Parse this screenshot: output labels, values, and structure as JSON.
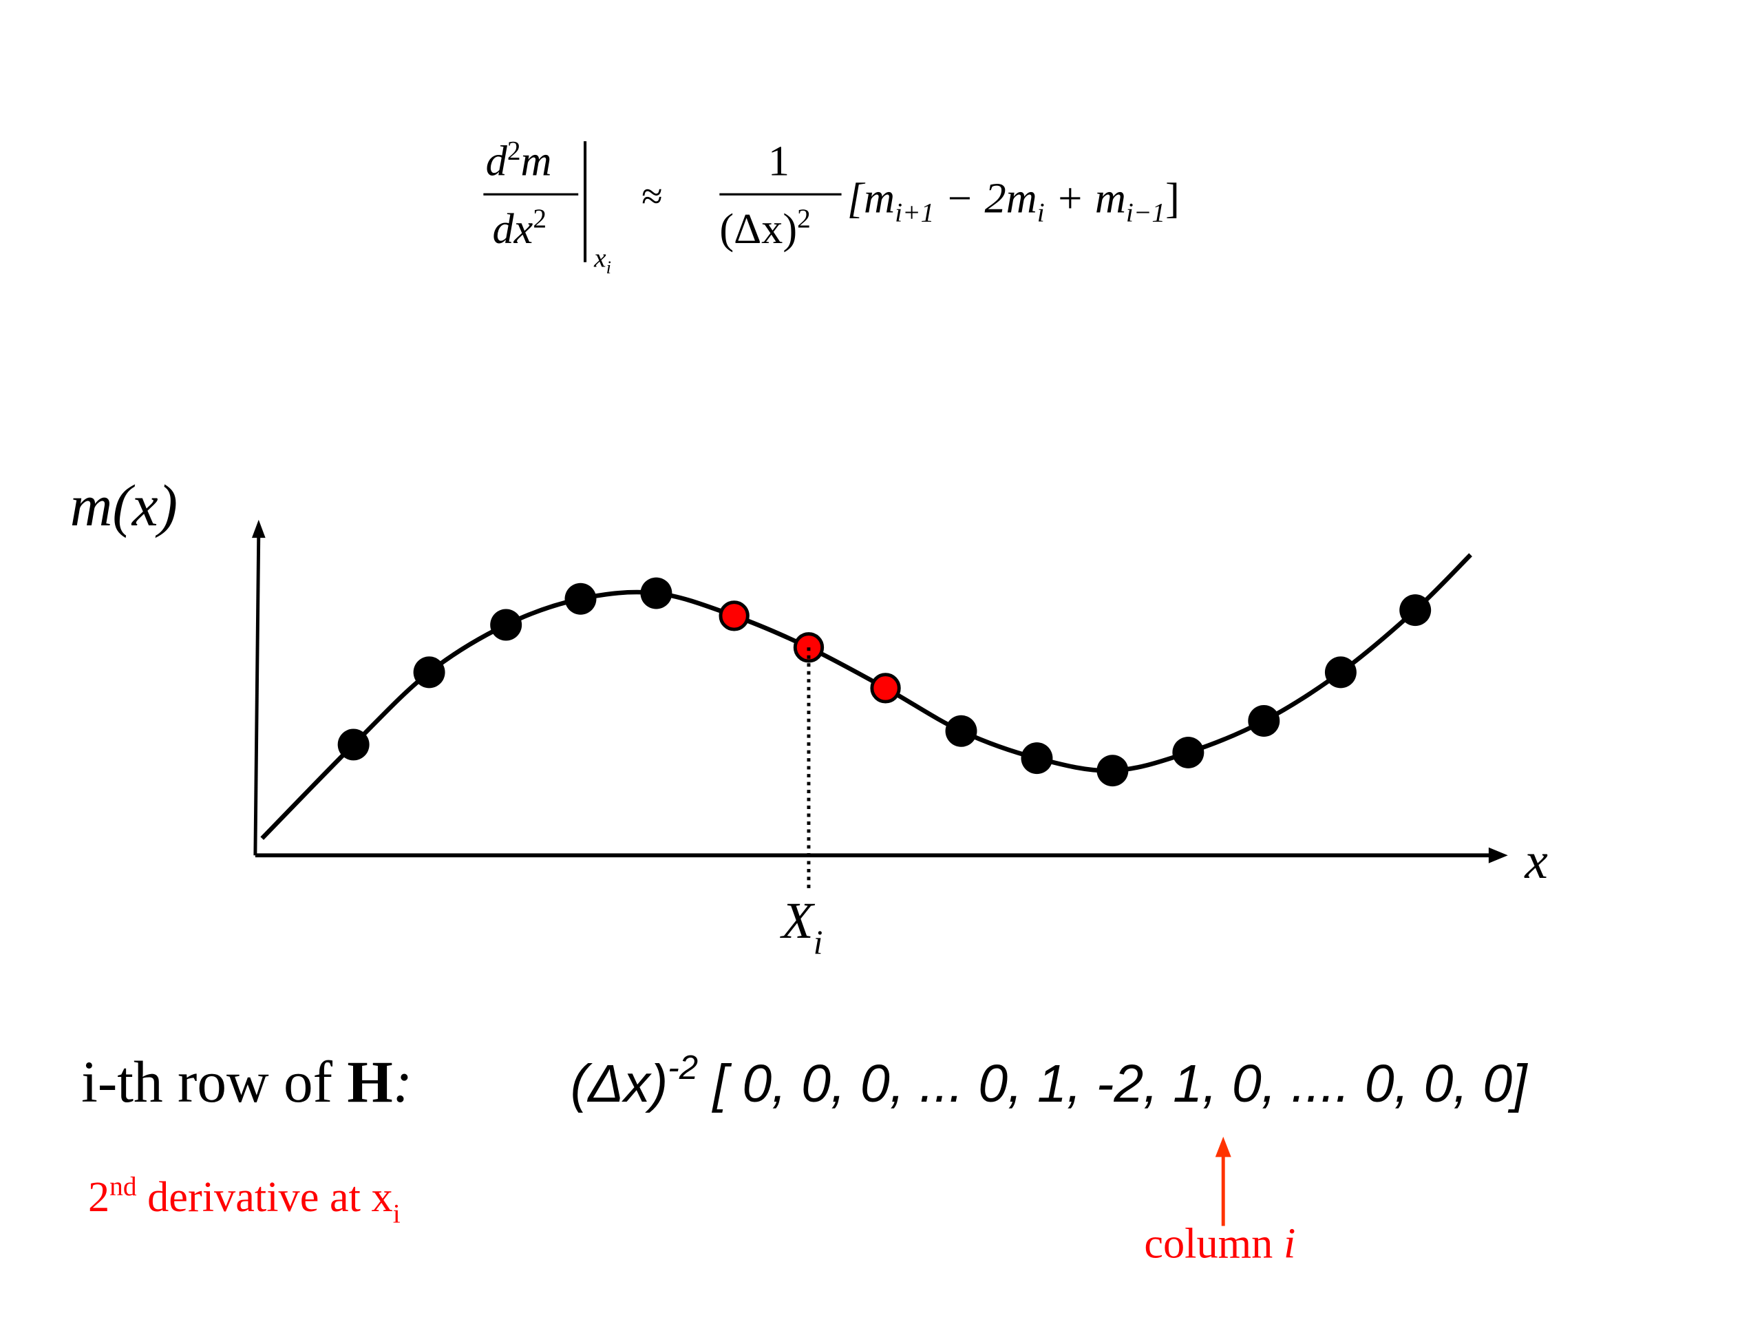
{
  "formula": {
    "numerator": [
      "d",
      "2",
      "m"
    ],
    "denominator": [
      "dx",
      "2"
    ],
    "evaluated_at": [
      "x",
      "i"
    ],
    "approx": "≈",
    "coefficient_numerator": "1",
    "coefficient_denominator": [
      "(Δx)",
      "2"
    ],
    "bracket": [
      "[m",
      "i+1",
      " − 2m",
      "i",
      " + m",
      "i−1",
      "]"
    ]
  },
  "graph": {
    "y_label": "m(x)",
    "x_label": "x",
    "point_label": [
      "X",
      "i"
    ]
  },
  "row": {
    "label": [
      "i-th row of ",
      "H",
      ":"
    ],
    "expression": [
      "(Δx)",
      "-2",
      " [ 0, 0, 0, ... 0, 1, -2, 1, 0, .... 0, 0, 0]"
    ]
  },
  "derivative_note": [
    "2",
    "nd",
    " derivative at x",
    "i"
  ],
  "column_note": [
    "column ",
    "i"
  ]
}
